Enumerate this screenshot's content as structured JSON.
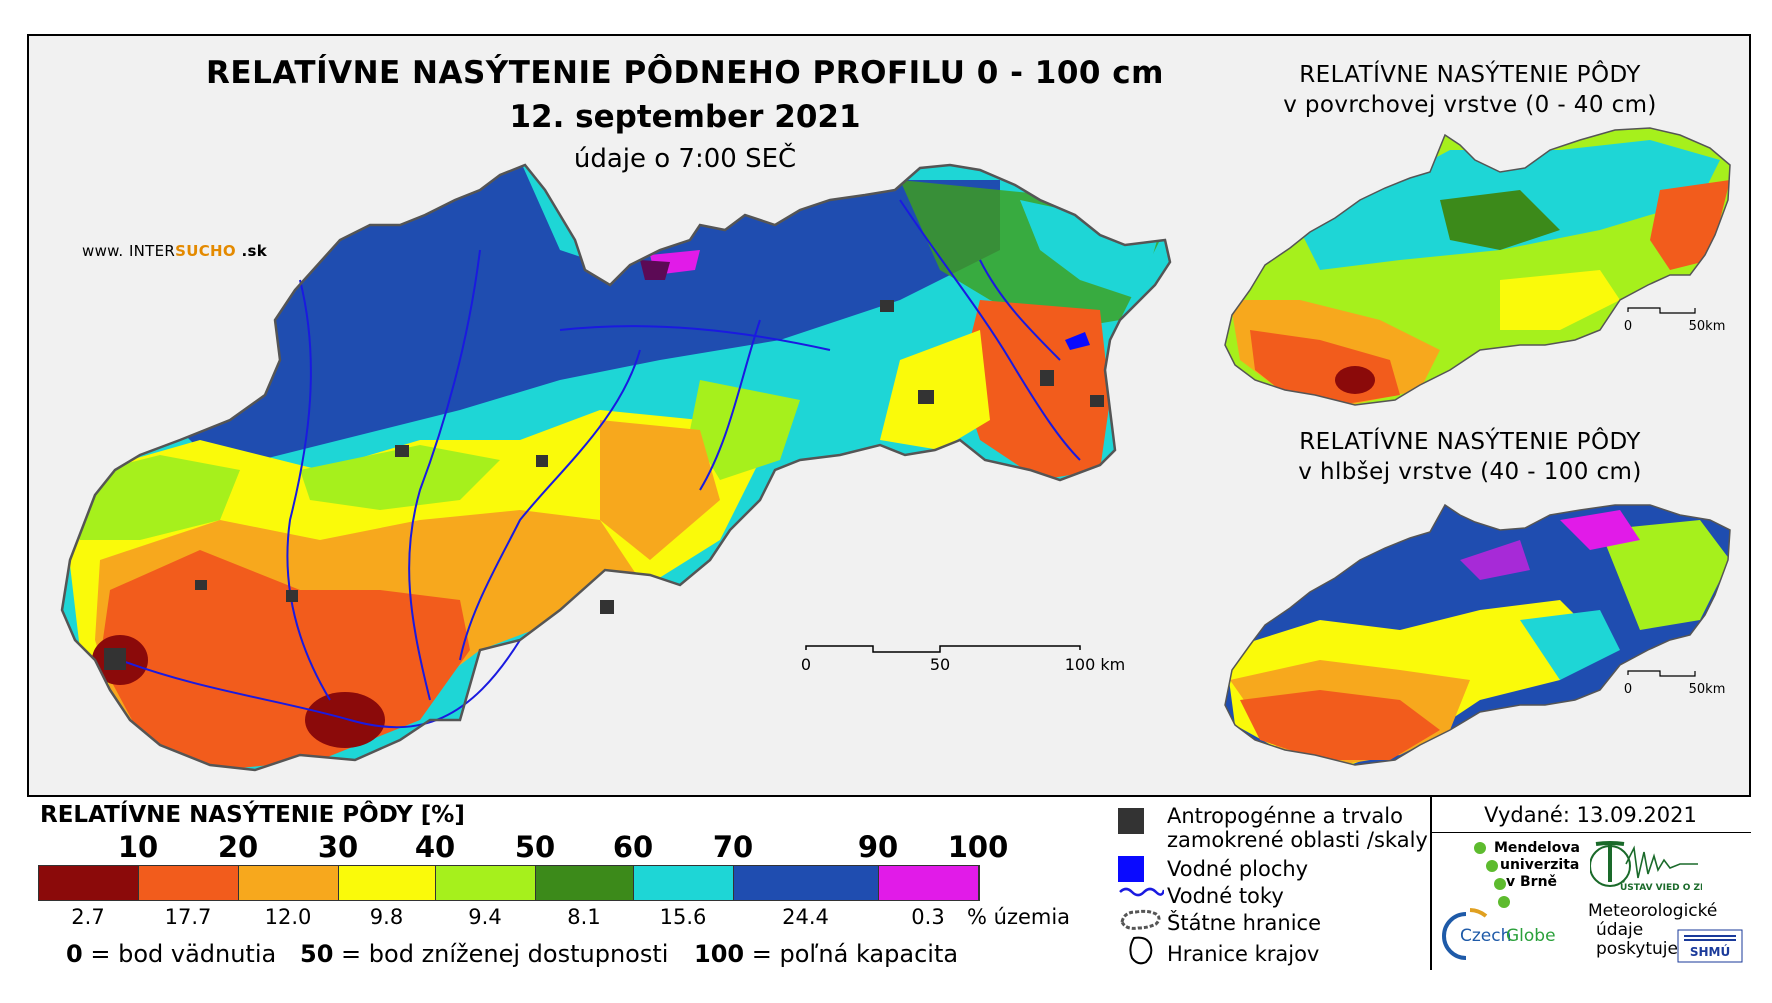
{
  "titles": {
    "main": "RELATÍVNE NASÝTENIE PÔDNEHO PROFILU 0 - 100 cm",
    "date": "12. september 2021",
    "time": "údaje o 7:00 SEČ",
    "inset_surface_line1": "RELATÍVNE NASÝTENIE PÔDY",
    "inset_surface_line2": "v povrchovej vrstve (0 - 40 cm)",
    "inset_deep_line1": "RELATÍVNE NASÝTENIE PÔDY",
    "inset_deep_line2": "v hlbšej vrstve (40 - 100 cm)"
  },
  "website": {
    "part1": "www.",
    "part2": "INTER",
    "part3": "SUCHO",
    "part4": ".sk"
  },
  "scalebars": {
    "main": {
      "zero": "0",
      "mid": "50",
      "end": "100 km"
    },
    "inset_surface": {
      "zero": "0",
      "end": "50km"
    },
    "inset_deep": {
      "zero": "0",
      "end": "50km"
    }
  },
  "legend": {
    "title": "RELATÍVNE NASÝTENIE PÔDY [%]",
    "breaks": [
      "10",
      "20",
      "30",
      "40",
      "50",
      "60",
      "70",
      "90",
      "100"
    ],
    "classes": [
      {
        "color": "#8b0a0a",
        "share": "2.7"
      },
      {
        "color": "#f25c1c",
        "share": "17.7"
      },
      {
        "color": "#f7a81d",
        "share": "12.0"
      },
      {
        "color": "#fafa0a",
        "share": "9.8"
      },
      {
        "color": "#a6f01c",
        "share": "9.4"
      },
      {
        "color": "#3c8a1a",
        "share": "8.1"
      },
      {
        "color": "#1ed6d6",
        "share": "15.6"
      },
      {
        "color": "#1f4db0",
        "share": "24.4"
      },
      {
        "color": "#e11be8",
        "share": "0.3"
      }
    ],
    "share_unit": "% územia",
    "notes": [
      {
        "value": "0",
        "text": "= bod vädnutia"
      },
      {
        "value": "50",
        "text": "= bod zníženej dostupnosti"
      },
      {
        "value": "100",
        "text": "= poľná kapacita"
      }
    ],
    "symbols": {
      "urban_line1": "Antropogénne a trvalo",
      "urban_line2": "zamokrené oblasti /skaly",
      "water_bodies": "Vodné plochy",
      "rivers": "Vodné toky",
      "state_border": "Štátne hranice",
      "region_border": "Hranice krajov"
    }
  },
  "credits": {
    "issued": "Vydané: 13.09.2021",
    "mendel_1": "Mendelova",
    "mendel_2": "univerzita",
    "mendel_3": "v Brně",
    "czechglobe_1": "Czech",
    "czechglobe_2": "Globe",
    "ustav": "ÚSTAV VIED O ZEMI",
    "meteo_1": "Meteorologické",
    "meteo_2": "údaje",
    "meteo_3": "poskytuje:",
    "shmu": "SHMÚ"
  },
  "colors": {
    "urban": "#333333",
    "water": "#0a0aff",
    "river": "#1a1ae0"
  }
}
